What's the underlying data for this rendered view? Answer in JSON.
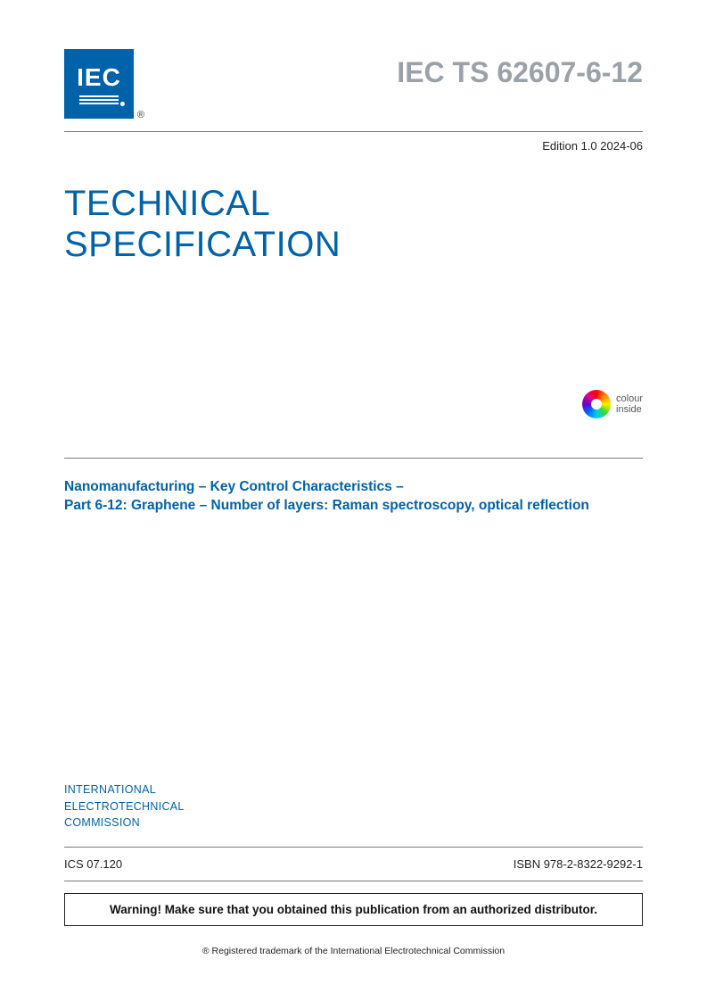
{
  "logo": {
    "text": "IEC",
    "background_color": "#0062a9",
    "text_color": "#ffffff",
    "registered_mark": "®"
  },
  "header": {
    "document_number": "IEC TS 62607-6-12",
    "edition_label": "Edition 1.0   2024-06"
  },
  "document_type": {
    "line1": "TECHNICAL",
    "line2": "SPECIFICATION"
  },
  "colour_badge": {
    "line1": "colour",
    "line2": "inside"
  },
  "title": {
    "line1": "Nanomanufacturing – Key Control Characteristics –",
    "line2": "Part 6-12: Graphene – Number of layers: Raman spectroscopy, optical reflection"
  },
  "organization": {
    "line1": "INTERNATIONAL",
    "line2": "ELECTROTECHNICAL",
    "line3": "COMMISSION"
  },
  "metadata": {
    "ics": "ICS 07.120",
    "isbn": "ISBN 978-2-8322-9292-1"
  },
  "warning": "Warning! Make sure that you obtained this publication from an authorized distributor.",
  "trademark": "® Registered trademark of the International Electrotechnical Commission",
  "colors": {
    "brand_blue": "#0062a9",
    "number_gray": "#9aa1a8",
    "rule_gray": "#7a7a7a",
    "text_black": "#222222"
  }
}
